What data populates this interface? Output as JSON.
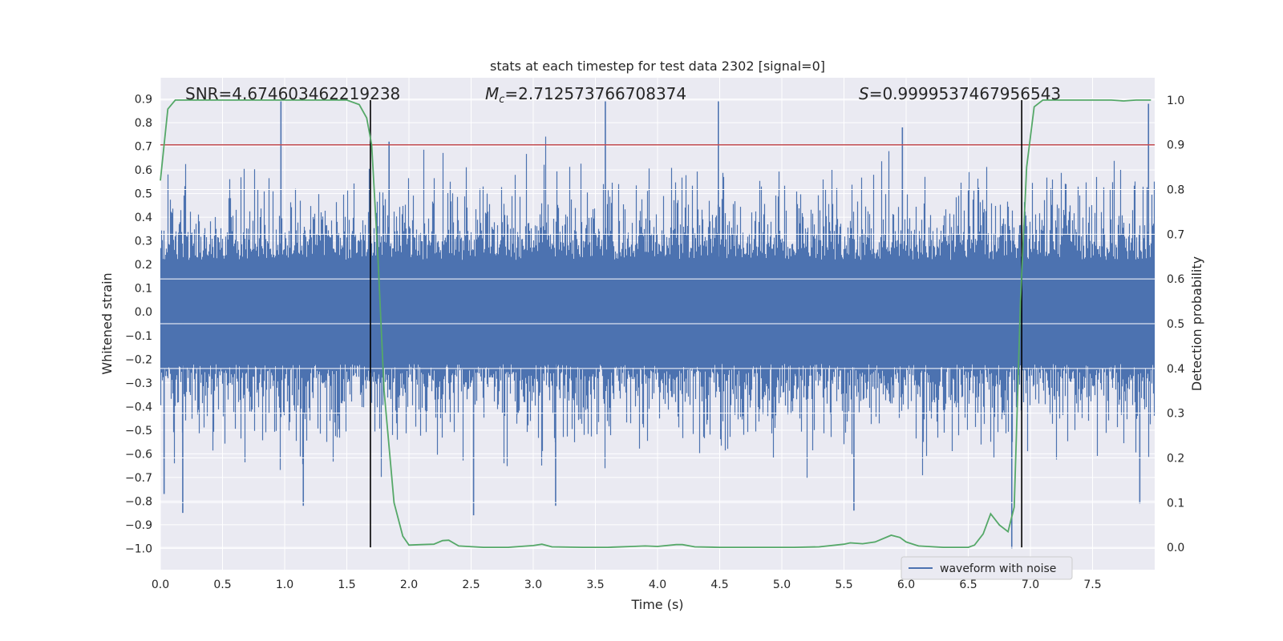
{
  "chart_data": {
    "type": "line",
    "title": "stats at each timestep for test data 2302 [signal=0]",
    "xlabel": "Time (s)",
    "ylabel": "Whitened strain",
    "y2label": "Detection probability",
    "xlim": [
      0.0,
      8.0
    ],
    "ylim": [
      -1.09,
      0.99
    ],
    "y2lim": [
      -0.05,
      1.05
    ],
    "xticks": [
      "0.0",
      "0.5",
      "1.0",
      "1.5",
      "2.0",
      "2.5",
      "3.0",
      "3.5",
      "4.0",
      "4.5",
      "5.0",
      "5.5",
      "6.0",
      "6.5",
      "7.0",
      "7.5"
    ],
    "yticks": [
      "0.9",
      "0.8",
      "0.7",
      "0.6",
      "0.5",
      "0.4",
      "0.3",
      "0.2",
      "0.1",
      "0.0",
      "−0.1",
      "−0.2",
      "−0.3",
      "−0.4",
      "−0.5",
      "−0.6",
      "−0.7",
      "−0.8",
      "−0.9",
      "−1.0"
    ],
    "y2ticks": [
      "1.0",
      "0.9",
      "0.8",
      "0.7",
      "0.6",
      "0.5",
      "0.4",
      "0.3",
      "0.2",
      "0.1",
      "0.0"
    ],
    "grid": true,
    "legend_position": "lower-right",
    "annotations": {
      "snr": "SNR=4.674603462219238",
      "mc": "M_c=2.712573766708374",
      "mc_symbol": "M",
      "mc_sub": "c",
      "mc_value": "=2.712573766708374",
      "s_symbol": "S",
      "s_value": "=0.9999537467956543"
    },
    "threshold_line": {
      "y2": 0.9,
      "color": "#c44e52"
    },
    "vertical_lines": {
      "x": [
        1.69,
        6.93
      ],
      "color": "#000000"
    },
    "series": [
      {
        "name": "waveform with noise",
        "color": "#4c72b0",
        "axis": "left",
        "description_range": [
          -1.0,
          0.9
        ],
        "spikes": [
          [
            0.03,
            -0.77
          ],
          [
            0.18,
            -0.85
          ],
          [
            0.97,
            0.89
          ],
          [
            1.15,
            -0.82
          ],
          [
            1.84,
            0.72
          ],
          [
            2.52,
            -0.86
          ],
          [
            3.18,
            -0.82
          ],
          [
            3.58,
            0.89
          ],
          [
            4.49,
            0.89
          ],
          [
            5.58,
            -0.84
          ],
          [
            5.97,
            0.78
          ],
          [
            6.85,
            -1.0
          ],
          [
            7.95,
            0.88
          ],
          [
            7.88,
            -0.81
          ]
        ]
      },
      {
        "name": "Detection probability",
        "color": "#55a868",
        "axis": "right",
        "legend": false,
        "x": [
          0.0,
          0.06,
          0.12,
          0.3,
          0.6,
          0.9,
          1.2,
          1.5,
          1.6,
          1.66,
          1.7,
          1.75,
          1.8,
          1.88,
          1.95,
          2.0,
          2.1,
          2.2,
          2.27,
          2.32,
          2.4,
          2.6,
          2.8,
          3.0,
          3.07,
          3.15,
          3.4,
          3.6,
          3.8,
          3.9,
          4.0,
          4.15,
          4.2,
          4.3,
          4.5,
          4.7,
          4.9,
          5.1,
          5.3,
          5.5,
          5.55,
          5.65,
          5.75,
          5.88,
          5.95,
          6.0,
          6.1,
          6.3,
          6.5,
          6.55,
          6.62,
          6.68,
          6.75,
          6.82,
          6.87,
          6.92,
          6.97,
          7.03,
          7.1,
          7.3,
          7.5,
          7.65,
          7.75,
          7.85,
          7.97
        ],
        "values": [
          0.82,
          0.98,
          1.0,
          1.0,
          1.0,
          1.0,
          1.0,
          1.0,
          0.99,
          0.96,
          0.9,
          0.65,
          0.35,
          0.1,
          0.025,
          0.005,
          0.006,
          0.007,
          0.015,
          0.016,
          0.003,
          0.0,
          0.0,
          0.004,
          0.007,
          0.001,
          0.0,
          0.0,
          0.002,
          0.003,
          0.002,
          0.006,
          0.006,
          0.001,
          0.0,
          0.0,
          0.0,
          0.0,
          0.001,
          0.007,
          0.01,
          0.008,
          0.012,
          0.027,
          0.022,
          0.012,
          0.003,
          0.0,
          0.0,
          0.005,
          0.03,
          0.075,
          0.05,
          0.035,
          0.09,
          0.55,
          0.85,
          0.985,
          1.0,
          1.0,
          1.0,
          1.0,
          0.998,
          1.0,
          1.0
        ]
      }
    ]
  }
}
